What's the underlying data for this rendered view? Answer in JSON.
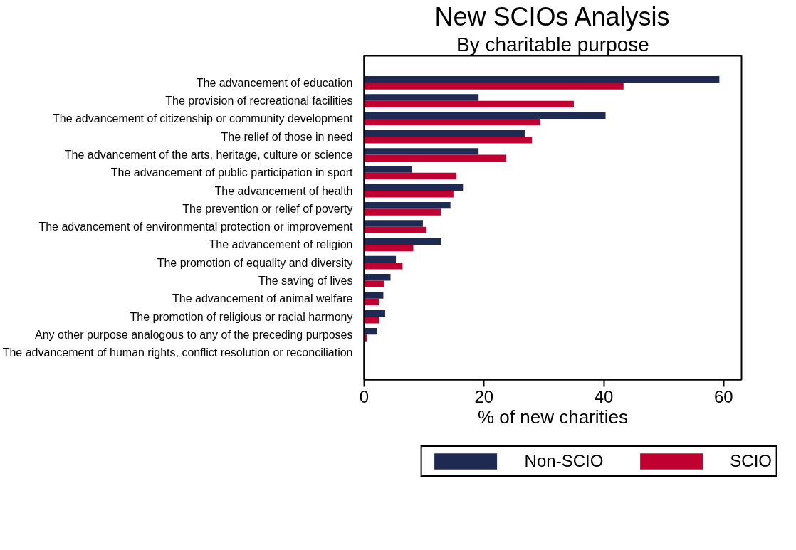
{
  "chart_data": {
    "type": "bar",
    "orientation": "horizontal",
    "title": "New SCIOs Analysis",
    "subtitle": "By charitable purpose",
    "xlabel": "% of new charities",
    "categories": [
      "The advancement of education",
      "The provision of recreational facilities",
      "The advancement of citizenship or community development",
      "The relief of those in need",
      "The advancement of the arts, heritage, culture or science",
      "The advancement of public participation in sport",
      "The advancement of health",
      "The prevention or relief of poverty",
      "The advancement of environmental protection or improvement",
      "The advancement of religion",
      "The promotion of equality and diversity",
      "The saving of lives",
      "The advancement of animal welfare",
      "The promotion of religious or racial harmony",
      "Any other purpose analogous to any of the preceding purposes",
      "The advancement of human rights, conflict resolution or reconciliation"
    ],
    "series": [
      {
        "name": "Non-SCIO",
        "color": "#1f2a52",
        "values": [
          59.3,
          19.1,
          40.3,
          26.8,
          19.1,
          8.0,
          16.5,
          14.4,
          9.8,
          12.8,
          5.3,
          4.4,
          3.2,
          3.5,
          2.1,
          0
        ]
      },
      {
        "name": "SCIO",
        "color": "#c00030",
        "values": [
          43.3,
          35.0,
          29.4,
          28.0,
          23.7,
          15.4,
          14.9,
          12.9,
          10.4,
          8.2,
          6.4,
          3.3,
          2.5,
          2.5,
          0.5,
          0
        ]
      }
    ],
    "xlim": [
      0,
      63
    ],
    "xticks": [
      0,
      20,
      40,
      60
    ],
    "grid": false,
    "legend": "bottom right"
  }
}
